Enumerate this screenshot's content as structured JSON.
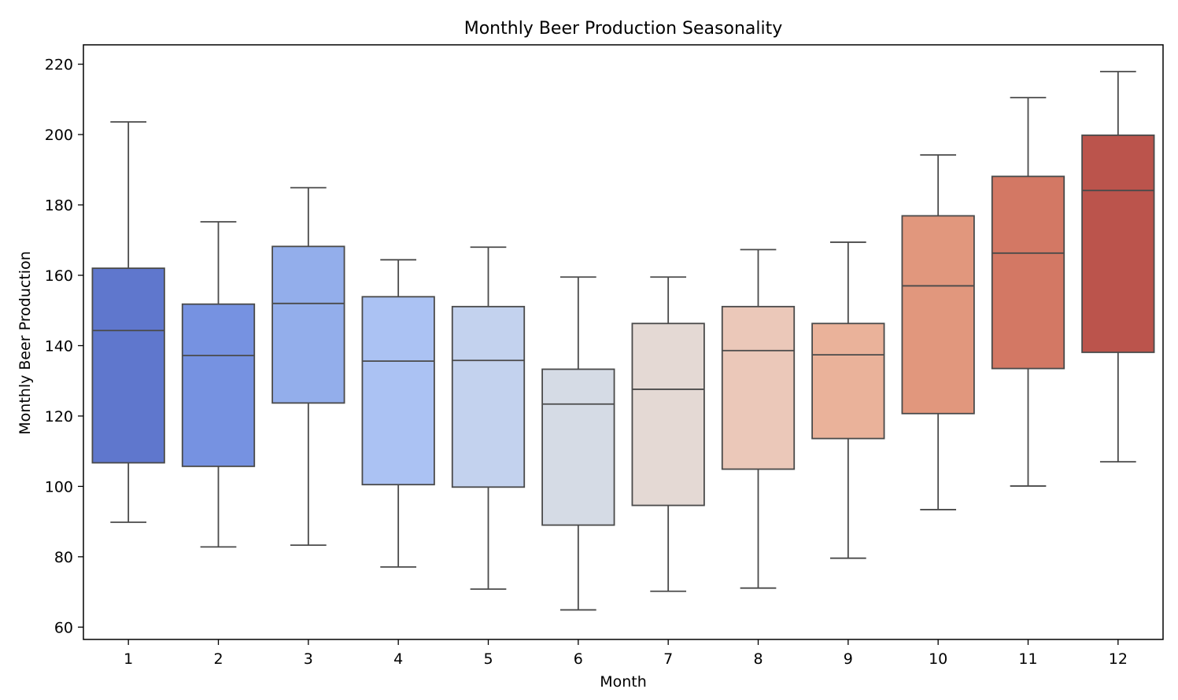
{
  "chart_data": {
    "type": "box",
    "title": "Monthly Beer Production Seasonality",
    "xlabel": "Month",
    "ylabel": "Monthly Beer Production",
    "ylim": [
      56.5,
      225.5
    ],
    "yticks": [
      60,
      80,
      100,
      120,
      140,
      160,
      180,
      200,
      220
    ],
    "grid": false,
    "legend": "none",
    "categories": [
      "1",
      "2",
      "3",
      "4",
      "5",
      "6",
      "7",
      "8",
      "9",
      "10",
      "11",
      "12"
    ],
    "boxes": [
      {
        "category": "1",
        "whisker_low": 89.8,
        "q1": 106.7,
        "median": 144.3,
        "q3": 162.0,
        "whisker_high": 203.6,
        "color": "#5f77cd"
      },
      {
        "category": "2",
        "whisker_low": 82.8,
        "q1": 105.7,
        "median": 137.2,
        "q3": 151.8,
        "whisker_high": 175.2,
        "color": "#7692e1"
      },
      {
        "category": "3",
        "whisker_low": 83.3,
        "q1": 123.7,
        "median": 152.0,
        "q3": 168.2,
        "whisker_high": 184.9,
        "color": "#93aeeb"
      },
      {
        "category": "4",
        "whisker_low": 77.1,
        "q1": 100.5,
        "median": 135.6,
        "q3": 153.9,
        "whisker_high": 164.4,
        "color": "#abc2f3"
      },
      {
        "category": "5",
        "whisker_low": 70.8,
        "q1": 99.8,
        "median": 135.8,
        "q3": 151.1,
        "whisker_high": 168.0,
        "color": "#c3d2ee"
      },
      {
        "category": "6",
        "whisker_low": 64.9,
        "q1": 89.0,
        "median": 123.4,
        "q3": 133.3,
        "whisker_high": 159.5,
        "color": "#d5dbe5"
      },
      {
        "category": "7",
        "whisker_low": 70.2,
        "q1": 94.6,
        "median": 127.6,
        "q3": 146.3,
        "whisker_high": 159.5,
        "color": "#e4d9d4"
      },
      {
        "category": "8",
        "whisker_low": 71.1,
        "q1": 104.9,
        "median": 138.6,
        "q3": 151.1,
        "whisker_high": 167.3,
        "color": "#ebc8b9"
      },
      {
        "category": "9",
        "whisker_low": 79.6,
        "q1": 113.6,
        "median": 137.4,
        "q3": 146.3,
        "whisker_high": 169.4,
        "color": "#eab29a"
      },
      {
        "category": "10",
        "whisker_low": 93.4,
        "q1": 120.7,
        "median": 157.0,
        "q3": 176.9,
        "whisker_high": 194.2,
        "color": "#e1977d"
      },
      {
        "category": "11",
        "whisker_low": 100.1,
        "q1": 133.5,
        "median": 166.3,
        "q3": 188.1,
        "whisker_high": 210.5,
        "color": "#d37864"
      },
      {
        "category": "12",
        "whisker_low": 107.0,
        "q1": 138.1,
        "median": 184.1,
        "q3": 199.8,
        "whisker_high": 217.9,
        "color": "#bb544c"
      }
    ]
  },
  "colors": {
    "line": "#4a4a4a",
    "axis": "#000000"
  }
}
